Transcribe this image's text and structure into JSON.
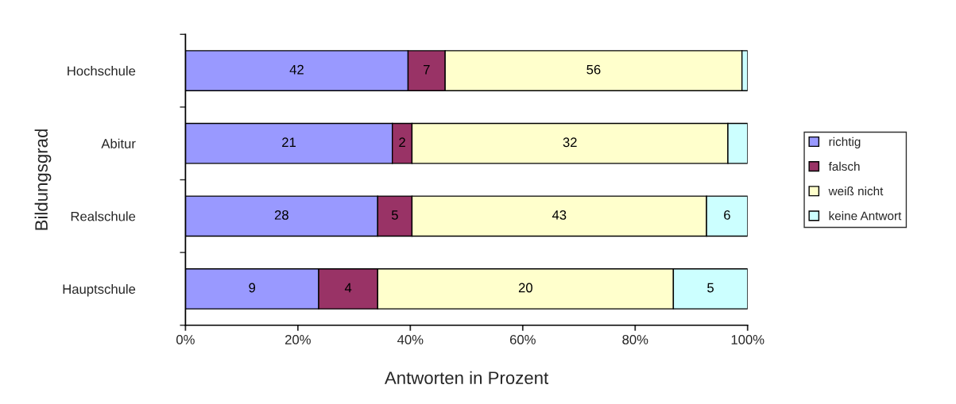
{
  "chart_data": {
    "type": "bar",
    "orientation": "horizontal",
    "stacked": true,
    "xlabel": "Antworten in Prozent",
    "ylabel": "Bildungsgrad",
    "categories": [
      "Hochschule",
      "Abitur",
      "Realschule",
      "Hauptschule"
    ],
    "series": [
      {
        "name": "richtig",
        "color": "#9999ff",
        "values": [
          39.6,
          36.8,
          34.2,
          23.7
        ]
      },
      {
        "name": "falsch",
        "color": "#993366",
        "values": [
          6.6,
          3.5,
          6.1,
          10.5
        ]
      },
      {
        "name": "weiß nicht",
        "color": "#ffffcc",
        "values": [
          52.8,
          56.2,
          52.4,
          52.6
        ]
      },
      {
        "name": "keine Antwort",
        "color": "#ccffff",
        "values": [
          1.0,
          3.5,
          7.3,
          13.2
        ]
      }
    ],
    "annotations": [
      "42",
      "7",
      "56",
      null,
      "21",
      "2",
      "32",
      null,
      "28",
      "5",
      "43",
      "6",
      "9",
      "4",
      "20",
      "5"
    ],
    "xlim": [
      0,
      100
    ],
    "xticks": [
      {
        "value": 0,
        "label": "0%"
      },
      {
        "value": 20,
        "label": "20%"
      },
      {
        "value": 40,
        "label": "40%"
      },
      {
        "value": 60,
        "label": "60%"
      },
      {
        "value": 80,
        "label": "80%"
      },
      {
        "value": 100,
        "label": "100%"
      }
    ],
    "grid": false,
    "legend": "right"
  }
}
